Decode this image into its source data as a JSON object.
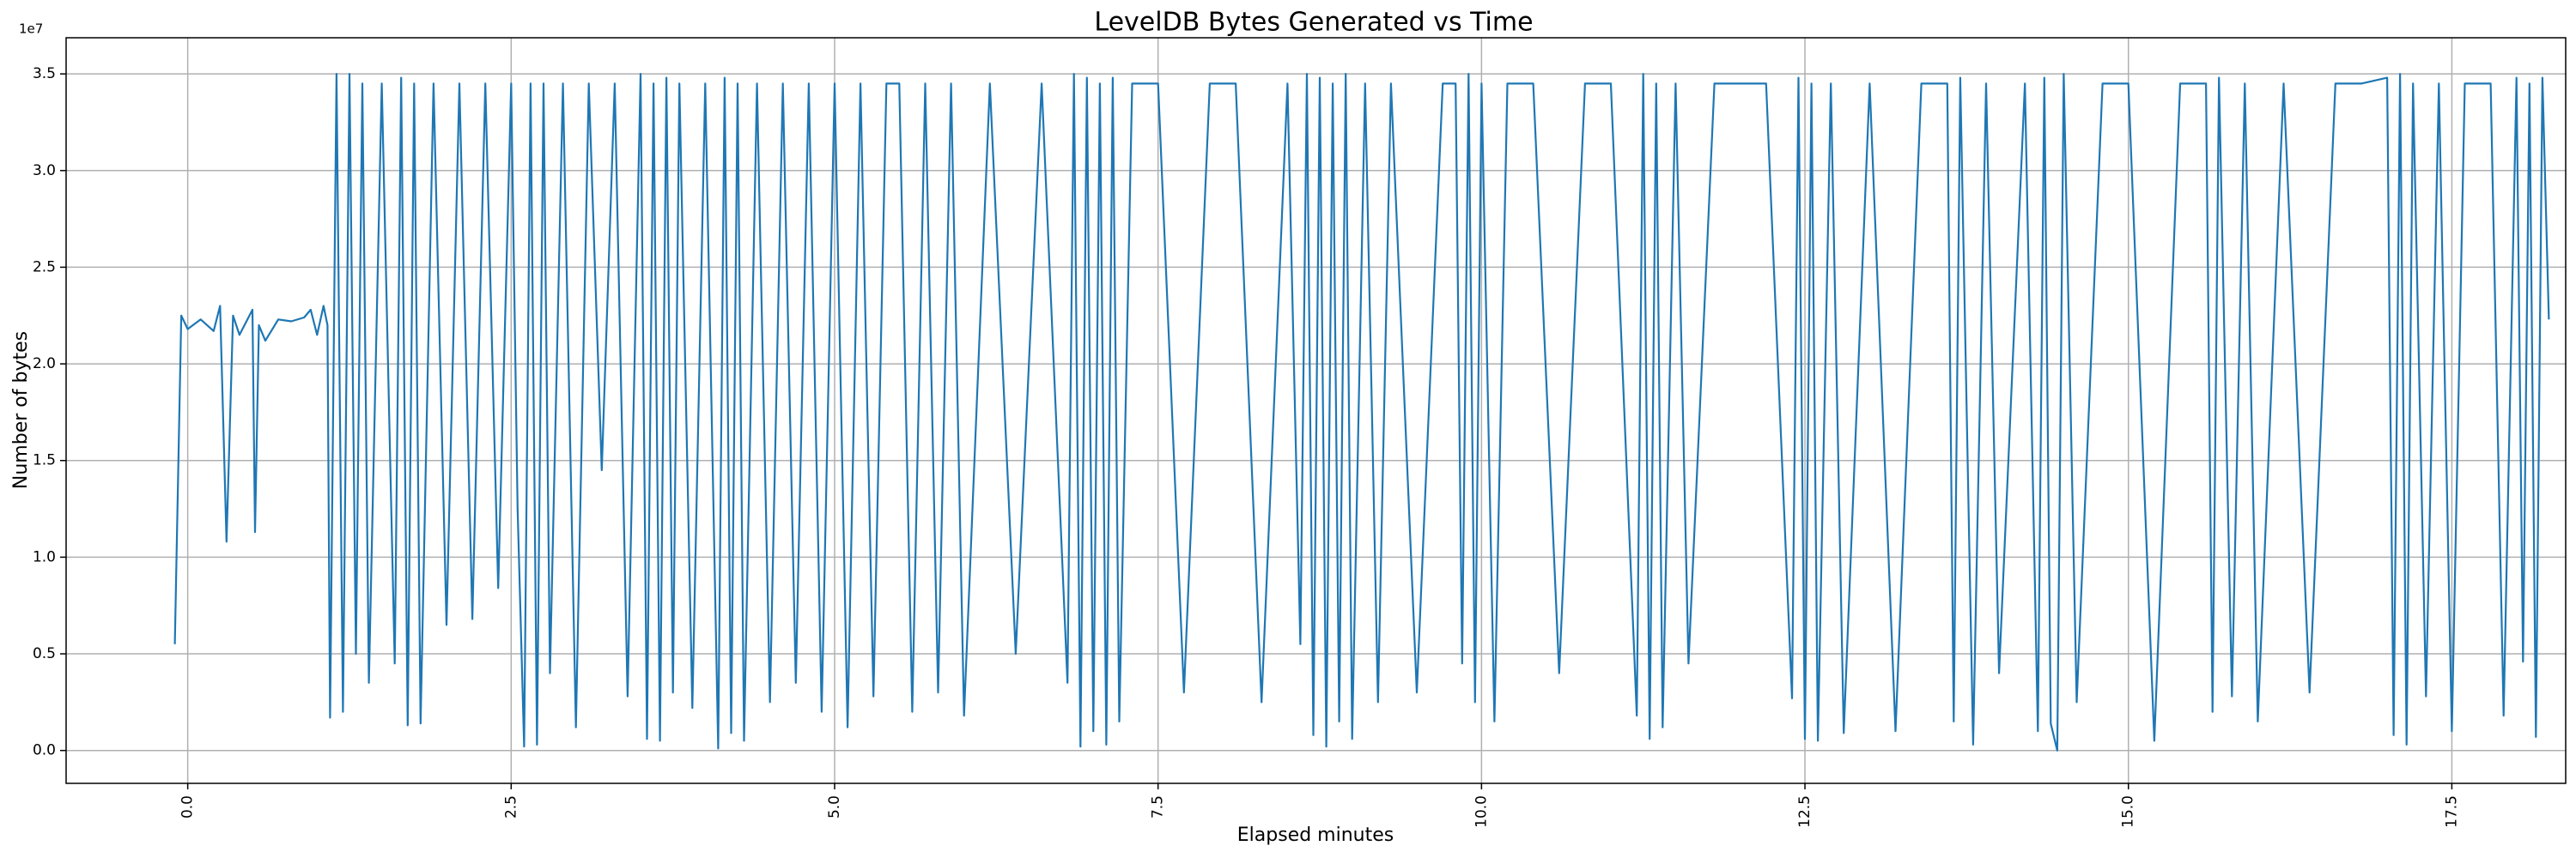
{
  "chart_data": {
    "type": "line",
    "title": "LevelDB Bytes Generated vs Time",
    "x_label": "Elapsed minutes",
    "y_label": "Number of bytes",
    "y_offset_label": "1e7",
    "color": "#1f77b4",
    "grid": true,
    "xlim": [
      -0.94,
      18.38
    ],
    "ylim": [
      -1700000,
      36870000
    ],
    "xticks": [
      {
        "value": 0,
        "label": "0.0"
      },
      2.5,
      {
        "value": 5,
        "label": "5.0"
      },
      7.5,
      {
        "value": 10,
        "label": "10.0"
      },
      12.5,
      {
        "value": 15,
        "label": "15.0"
      },
      17.5
    ],
    "yticks": [
      {
        "value": 0,
        "label": "0.0"
      },
      {
        "value": 5000000,
        "label": "0.5"
      },
      {
        "value": 10000000,
        "label": "1.0"
      },
      {
        "value": 15000000,
        "label": "1.5"
      },
      {
        "value": 20000000,
        "label": "2.0"
      },
      {
        "value": 25000000,
        "label": "2.5"
      },
      {
        "value": 30000000,
        "label": "3.0"
      },
      {
        "value": 35000000,
        "label": "3.5"
      }
    ],
    "x": [
      -0.1,
      -0.05,
      0.0,
      0.1,
      0.2,
      0.25,
      0.3,
      0.35,
      0.4,
      0.5,
      0.52,
      0.55,
      0.6,
      0.7,
      0.8,
      0.9,
      0.95,
      1.0,
      1.05,
      1.08,
      1.1,
      1.15,
      1.2,
      1.25,
      1.3,
      1.35,
      1.4,
      1.5,
      1.6,
      1.65,
      1.7,
      1.75,
      1.8,
      1.9,
      2.0,
      2.1,
      2.2,
      2.3,
      2.4,
      2.5,
      2.55,
      2.6,
      2.65,
      2.7,
      2.75,
      2.8,
      2.9,
      3.0,
      3.1,
      3.2,
      3.3,
      3.4,
      3.5,
      3.55,
      3.6,
      3.65,
      3.7,
      3.75,
      3.8,
      3.9,
      4.0,
      4.1,
      4.15,
      4.2,
      4.25,
      4.3,
      4.4,
      4.5,
      4.6,
      4.7,
      4.8,
      4.9,
      5.0,
      5.1,
      5.2,
      5.3,
      5.4,
      5.5,
      5.6,
      5.7,
      5.8,
      5.9,
      6.0,
      6.2,
      6.4,
      6.6,
      6.8,
      6.85,
      6.9,
      6.95,
      7.0,
      7.05,
      7.1,
      7.15,
      7.2,
      7.3,
      7.5,
      7.7,
      7.9,
      8.1,
      8.3,
      8.5,
      8.6,
      8.65,
      8.7,
      8.75,
      8.8,
      8.85,
      8.9,
      8.95,
      9.0,
      9.1,
      9.2,
      9.3,
      9.5,
      9.7,
      9.8,
      9.85,
      9.9,
      9.95,
      10.0,
      10.1,
      10.2,
      10.4,
      10.6,
      10.8,
      11.0,
      11.2,
      11.25,
      11.3,
      11.35,
      11.4,
      11.5,
      11.6,
      11.8,
      12.0,
      12.2,
      12.4,
      12.45,
      12.5,
      12.55,
      12.6,
      12.7,
      12.8,
      13.0,
      13.2,
      13.4,
      13.6,
      13.65,
      13.7,
      13.8,
      13.9,
      14.0,
      14.2,
      14.3,
      14.35,
      14.4,
      14.45,
      14.5,
      14.6,
      14.8,
      15.0,
      15.2,
      15.4,
      15.6,
      15.65,
      15.7,
      15.8,
      15.9,
      16.0,
      16.2,
      16.4,
      16.6,
      16.8,
      17.0,
      17.05,
      17.1,
      17.15,
      17.2,
      17.3,
      17.4,
      17.5,
      17.6,
      17.8,
      17.9,
      18.0,
      18.05,
      18.1,
      18.15,
      18.2,
      18.25
    ],
    "values": [
      5500000,
      22500000,
      21800000,
      22300000,
      21700000,
      23000000,
      10800000,
      22500000,
      21500000,
      22800000,
      11300000,
      22000000,
      21200000,
      22300000,
      22200000,
      22400000,
      22800000,
      21500000,
      23000000,
      22000000,
      1700000,
      35000000,
      2000000,
      35000000,
      5000000,
      34500000,
      3500000,
      34500000,
      4500000,
      34800000,
      1300000,
      34500000,
      1400000,
      34500000,
      6500000,
      34500000,
      6800000,
      34500000,
      8400000,
      34500000,
      12500000,
      200000,
      34500000,
      300000,
      34500000,
      4000000,
      34500000,
      1200000,
      34500000,
      14500000,
      34500000,
      2800000,
      35000000,
      600000,
      34500000,
      500000,
      34800000,
      3000000,
      34500000,
      2200000,
      34500000,
      100000,
      34800000,
      900000,
      34500000,
      500000,
      34500000,
      2500000,
      34500000,
      3500000,
      34500000,
      2000000,
      34500000,
      1200000,
      34500000,
      2800000,
      34500000,
      34500000,
      2000000,
      34500000,
      3000000,
      34500000,
      1800000,
      34500000,
      5000000,
      34500000,
      3500000,
      35000000,
      200000,
      34800000,
      1000000,
      34500000,
      300000,
      34800000,
      1500000,
      34500000,
      34500000,
      3000000,
      34500000,
      34500000,
      2500000,
      34500000,
      5500000,
      35000000,
      800000,
      34800000,
      200000,
      34500000,
      1500000,
      35000000,
      600000,
      34500000,
      2500000,
      34500000,
      3000000,
      34500000,
      34500000,
      4500000,
      35000000,
      2500000,
      34500000,
      1500000,
      34500000,
      34500000,
      4000000,
      34500000,
      34500000,
      1800000,
      35000000,
      600000,
      34500000,
      1200000,
      34500000,
      4500000,
      34500000,
      34500000,
      34500000,
      2700000,
      34800000,
      600000,
      34500000,
      500000,
      34500000,
      900000,
      34500000,
      1000000,
      34500000,
      34500000,
      1500000,
      34800000,
      300000,
      34500000,
      4000000,
      34500000,
      1000000,
      34800000,
      1400000,
      0,
      35000000,
      2500000,
      34500000,
      34500000,
      500000,
      34500000,
      34500000,
      2000000,
      34800000,
      2800000,
      34500000,
      1500000,
      34500000,
      3000000,
      34500000,
      34500000,
      34800000,
      800000,
      35000000,
      300000,
      34500000,
      2800000,
      34500000,
      1000000,
      34500000,
      34500000,
      1800000,
      34800000,
      4600000,
      34500000,
      700000,
      34800000,
      22300000
    ]
  }
}
